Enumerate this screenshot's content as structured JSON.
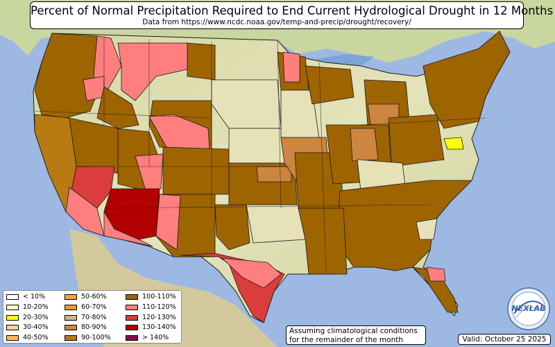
{
  "header": {
    "title": "Percent of Normal Precipitation Required to End Current Hydrological Drought in 12 Months",
    "subtitle": "Data from https://www.ncdc.noaa.gov/temp-and-precip/drought/recovery/"
  },
  "legend": {
    "items": [
      {
        "label": "< 10%",
        "color": "#ffffff"
      },
      {
        "label": "10-20%",
        "color": "#fffdc7"
      },
      {
        "label": "20-30%",
        "color": "#ffff00"
      },
      {
        "label": "30-40%",
        "color": "#ffd39b"
      },
      {
        "label": "40-50%",
        "color": "#ffb866"
      },
      {
        "label": "50-60%",
        "color": "#f5a442"
      },
      {
        "label": "60-70%",
        "color": "#f0961e"
      },
      {
        "label": "70-80%",
        "color": "#d2b48c"
      },
      {
        "label": "80-90%",
        "color": "#cd853f"
      },
      {
        "label": "90-100%",
        "color": "#b87a13"
      },
      {
        "label": "100-110%",
        "color": "#9e6400"
      },
      {
        "label": "110-120%",
        "color": "#ff7f7f"
      },
      {
        "label": "120-130%",
        "color": "#db3c3c"
      },
      {
        "label": "130-140%",
        "color": "#b30000"
      },
      {
        "label": "> 140%",
        "color": "#8b0a50"
      }
    ]
  },
  "notes": {
    "assumption_line1": "Assuming climatological conditions",
    "assumption_line2": "for the remainder of the month",
    "valid": "Valid: October 25 2025"
  },
  "logo": {
    "text": "NEXLAB"
  },
  "colors": {
    "ocean": "#9db9e3",
    "land_base": "#d9dca9",
    "state_border": "#1a1a1a"
  }
}
